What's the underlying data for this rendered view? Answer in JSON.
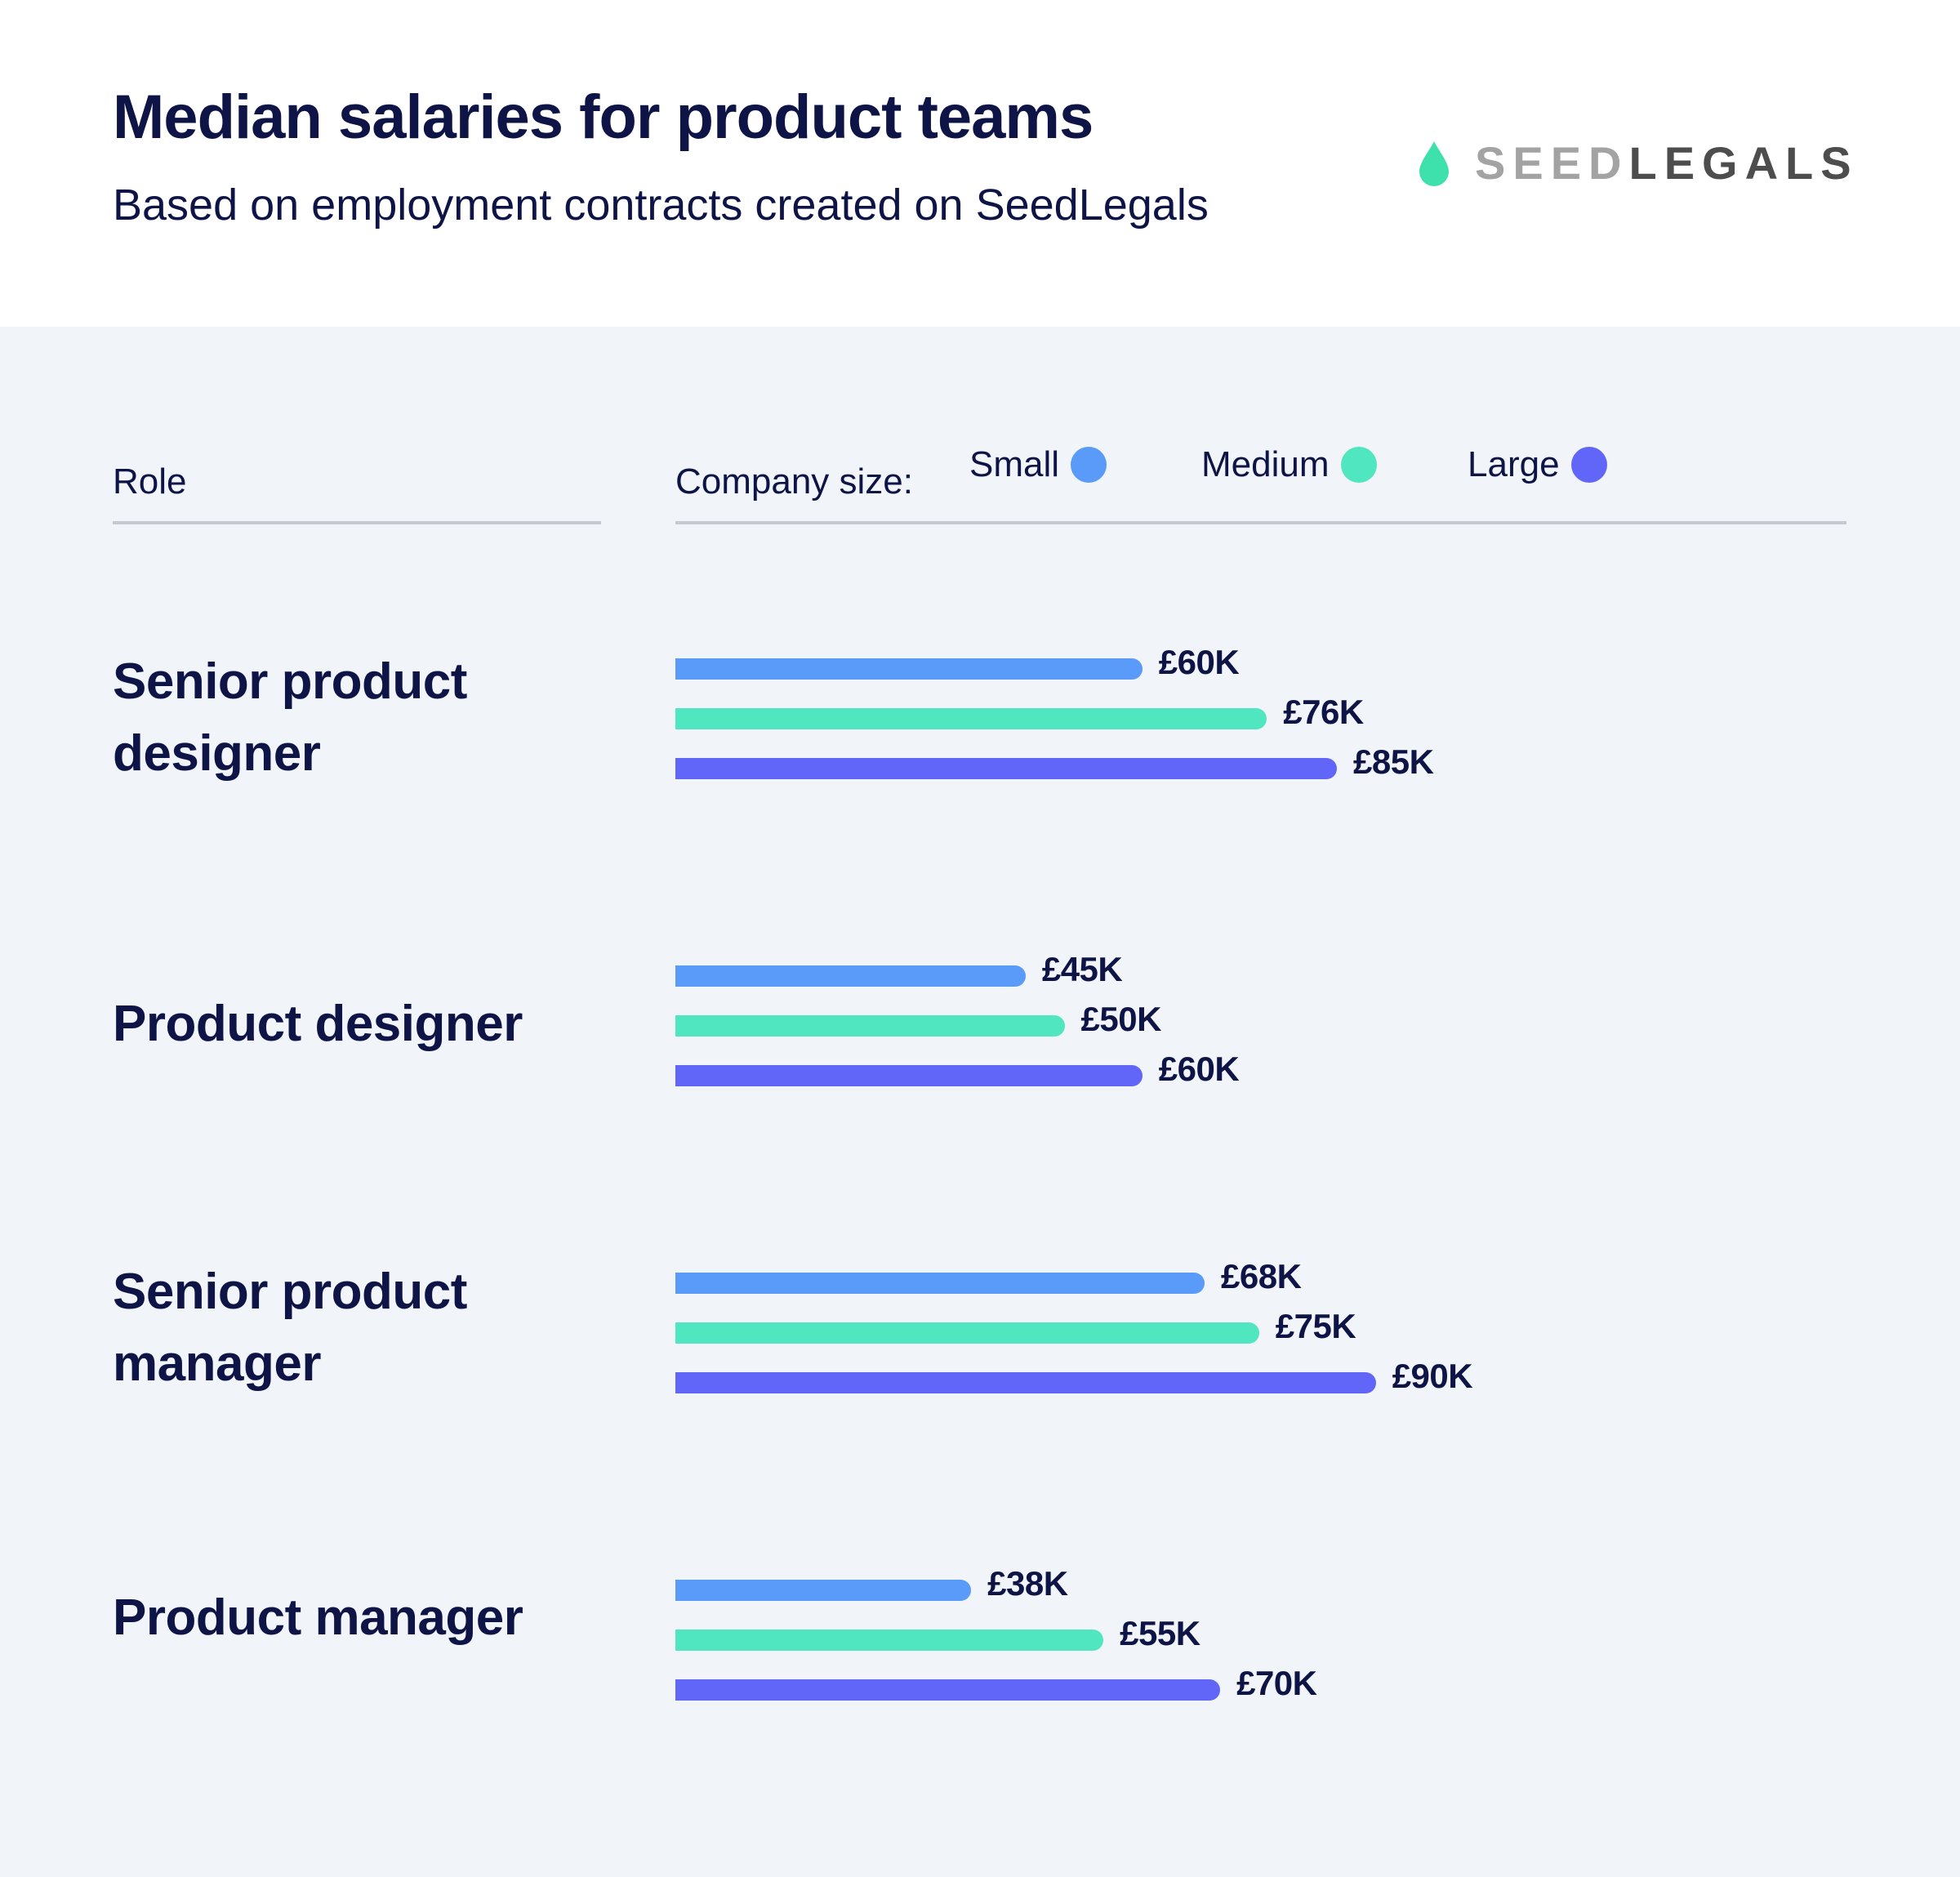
{
  "header": {
    "title": "Median salaries for product teams",
    "subtitle": "Based on employment contracts created on SeedLegals"
  },
  "logo": {
    "icon": "drop-icon",
    "text_light": "SEED",
    "text_dark": "LEGALS",
    "colors": {
      "drop": "#3ee0ac",
      "light": "#a3a3a3",
      "dark": "#4d4d4d"
    }
  },
  "table_header": {
    "role_label": "Role",
    "company_size_label": "Company size:"
  },
  "colors": {
    "small": "#5a9af8",
    "medium": "#50e6bf",
    "large": "#6166f8"
  },
  "chart_data": {
    "type": "bar",
    "orientation": "horizontal",
    "categories": [
      "Senior product designer",
      "Product designer",
      "Senior product manager",
      "Product manager"
    ],
    "series": [
      {
        "name": "Small",
        "values": [
          60,
          45,
          68,
          38
        ],
        "labels": [
          "£60K",
          "£45K",
          "£68K",
          "£38K"
        ]
      },
      {
        "name": "Medium",
        "values": [
          76,
          50,
          75,
          55
        ],
        "labels": [
          "£76K",
          "£50K",
          "£75K",
          "£55K"
        ]
      },
      {
        "name": "Large",
        "values": [
          85,
          60,
          90,
          70
        ],
        "labels": [
          "£85K",
          "£60K",
          "£90K",
          "£70K"
        ]
      }
    ],
    "unit": "£K",
    "legend_position": "top",
    "grid": false
  }
}
